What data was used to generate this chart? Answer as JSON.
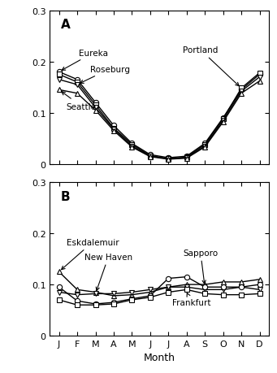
{
  "months": [
    "J",
    "F",
    "M",
    "A",
    "M",
    "J",
    "J",
    "A",
    "S",
    "O",
    "N",
    "D"
  ],
  "panel_A": {
    "label": "A",
    "series": {
      "Eureka": [
        0.18,
        0.165,
        0.12,
        0.075,
        0.04,
        0.018,
        0.012,
        0.015,
        0.04,
        0.09,
        0.145,
        0.175
      ],
      "Portland": [
        0.175,
        0.16,
        0.115,
        0.07,
        0.038,
        0.016,
        0.01,
        0.013,
        0.038,
        0.088,
        0.148,
        0.178
      ],
      "Roseburg": [
        0.165,
        0.155,
        0.11,
        0.068,
        0.035,
        0.015,
        0.01,
        0.012,
        0.035,
        0.085,
        0.142,
        0.17
      ],
      "Seattle": [
        0.145,
        0.138,
        0.105,
        0.065,
        0.033,
        0.014,
        0.009,
        0.011,
        0.033,
        0.082,
        0.138,
        0.162
      ]
    },
    "markers": {
      "Eureka": "o",
      "Portland": "s",
      "Roseburg": "v",
      "Seattle": "^"
    }
  },
  "panel_B": {
    "label": "B",
    "series": {
      "Eskdalemuir": [
        0.125,
        0.09,
        0.085,
        0.078,
        0.08,
        0.085,
        0.095,
        0.1,
        0.1,
        0.105,
        0.105,
        0.11
      ],
      "New Haven": [
        0.085,
        0.08,
        0.082,
        0.082,
        0.085,
        0.09,
        0.095,
        0.095,
        0.09,
        0.09,
        0.095,
        0.09
      ],
      "Sapporo": [
        0.095,
        0.068,
        0.062,
        0.065,
        0.072,
        0.078,
        0.112,
        0.115,
        0.095,
        0.095,
        0.095,
        0.1
      ],
      "Frankfurt": [
        0.07,
        0.06,
        0.06,
        0.062,
        0.07,
        0.075,
        0.085,
        0.09,
        0.082,
        0.08,
        0.08,
        0.082
      ]
    },
    "markers": {
      "Eskdalemuir": "^",
      "New Haven": "v",
      "Sapporo": "o",
      "Frankfurt": "s"
    }
  },
  "ylim": [
    0,
    0.3
  ],
  "yticks": [
    0,
    0.1,
    0.2,
    0.3
  ],
  "yticklabels": [
    "0",
    "0.1",
    "0.2",
    "0.3"
  ],
  "xlabel": "Month",
  "color": "black",
  "markersize": 4.5,
  "linewidth": 1.0
}
